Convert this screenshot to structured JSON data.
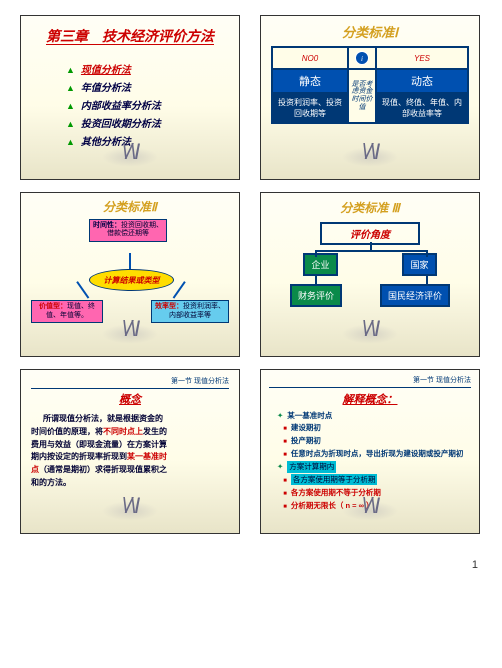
{
  "s1": {
    "title": "第三章　技术经济评价方法",
    "items": [
      {
        "t": "现值分析法",
        "hl": true
      },
      {
        "t": "年值分析法",
        "hl": false
      },
      {
        "t": "内部收益率分析法",
        "hl": false
      },
      {
        "t": "投资回收期分析法",
        "hl": false
      },
      {
        "t": "其他分析法",
        "hl": false
      }
    ]
  },
  "s2": {
    "title": "分类标准Ⅰ",
    "no": "NO0",
    "yes": "YES",
    "mid_top": "是否考虑资金时间价值",
    "jing": "静态",
    "dong": "动态",
    "left_bot": "投资利润率、投资回收期等",
    "right_bot": "现值、终值、年值、内部收益率等"
  },
  "s3": {
    "title": "分类标准Ⅱ",
    "top": {
      "l1": "时间性：",
      "l2": "投资回收期、借款偿还期等"
    },
    "center": "计算结果或类型",
    "bl": {
      "l1": "价值型：",
      "l2": "现值、终值、年值等。"
    },
    "br": {
      "l1": "效率型：",
      "l2": "投资利润率、内部收益率等"
    }
  },
  "s4": {
    "title": "分类标准 Ⅲ",
    "eval": "评价角度",
    "ent": "企业",
    "nat": "国家",
    "fe": "财务评价",
    "ne": "国民经济评价"
  },
  "s5": {
    "crumb": "第一节 现值分析法",
    "title": "概念",
    "text": [
      "所谓现值分析法，就是根据资金的",
      "时间价值的原理，将",
      "不同时点上",
      "发生的",
      "费用与效益（即现金流量）在方案计算",
      "期内按设定的折现率折现到",
      "某一基准时",
      "点",
      "（通常是期初）求得折现现值累积之",
      "和的方法。"
    ]
  },
  "s6": {
    "crumb": "第一节 现值分析法",
    "title": "解释概念：",
    "items": [
      {
        "t": "某一基准时点",
        "c": "blue",
        "b": 1
      },
      {
        "t": "建设期初",
        "c": "blue",
        "b": 2
      },
      {
        "t": "投产期初",
        "c": "blue",
        "b": 2
      },
      {
        "t": "任意时点为折现时点，导出折现为建设期或投产期初",
        "c": "blue",
        "b": 2
      },
      {
        "t": "方案计算期内",
        "c": "teal",
        "b": 1
      },
      {
        "t": "各方案使用期等于分析期",
        "c": "teal",
        "b": 2
      },
      {
        "t": "各方案使用期不等于分析期",
        "c": "red",
        "b": 2
      },
      {
        "t": "分析期无限长（ n = ∞ ）",
        "c": "red",
        "b": 2
      }
    ]
  },
  "pageNum": "1"
}
